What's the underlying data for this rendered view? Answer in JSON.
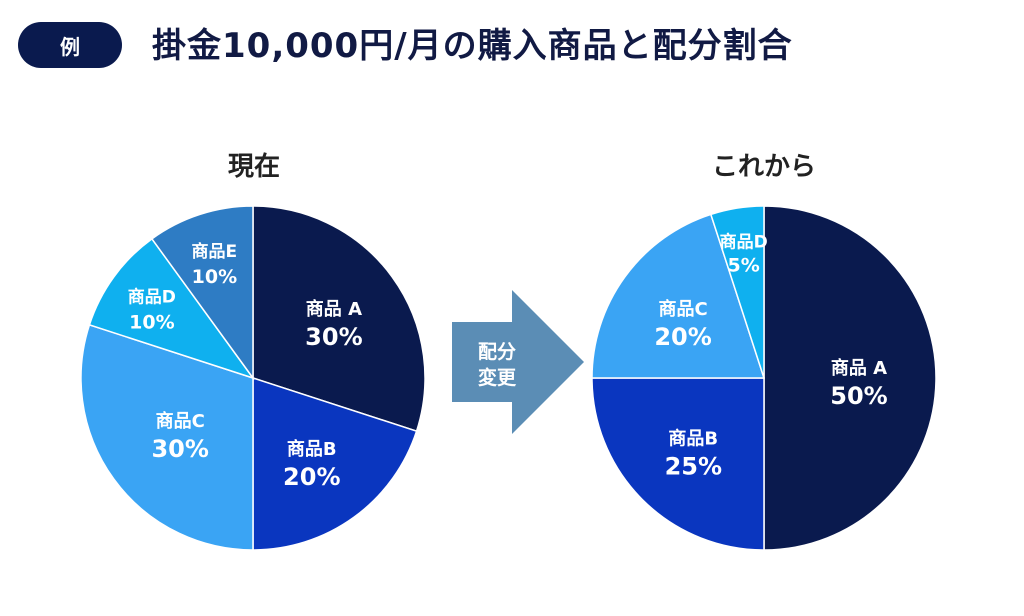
{
  "header": {
    "badge": "例",
    "title": "掛金10,000円/月の購入商品と配分割合"
  },
  "arrow": {
    "line1": "配分",
    "line2": "変更"
  },
  "colors": {
    "navy": "#0a1a4e",
    "text_dark": "#111a44",
    "arrow": "#5b8db5",
    "product_a": "#0a1a4e",
    "product_b": "#0a36bf",
    "product_c": "#3aa4f4",
    "product_d": "#0fb0ef",
    "product_e": "#2e7cc4"
  },
  "chart_data": [
    {
      "type": "pie",
      "title": "現在",
      "slices": [
        {
          "name": "商品A",
          "label": "商品 A",
          "value": 30,
          "pct": "30%",
          "color": "#0a1a4e"
        },
        {
          "name": "商品B",
          "label": "商品B",
          "value": 20,
          "pct": "20%",
          "color": "#0a36bf"
        },
        {
          "name": "商品C",
          "label": "商品C",
          "value": 30,
          "pct": "30%",
          "color": "#3aa4f4"
        },
        {
          "name": "商品D",
          "label": "商品D",
          "value": 10,
          "pct": "10%",
          "color": "#0fb0ef"
        },
        {
          "name": "商品E",
          "label": "商品E",
          "value": 10,
          "pct": "10%",
          "color": "#2e7cc4"
        }
      ]
    },
    {
      "type": "pie",
      "title": "これから",
      "slices": [
        {
          "name": "商品A",
          "label": "商品 A",
          "value": 50,
          "pct": "50%",
          "color": "#0a1a4e"
        },
        {
          "name": "商品B",
          "label": "商品B",
          "value": 25,
          "pct": "25%",
          "color": "#0a36bf"
        },
        {
          "name": "商品C",
          "label": "商品C",
          "value": 20,
          "pct": "20%",
          "color": "#3aa4f4"
        },
        {
          "name": "商品D",
          "label": "商品D",
          "value": 5,
          "pct": "5%",
          "color": "#0fb0ef"
        }
      ]
    }
  ]
}
